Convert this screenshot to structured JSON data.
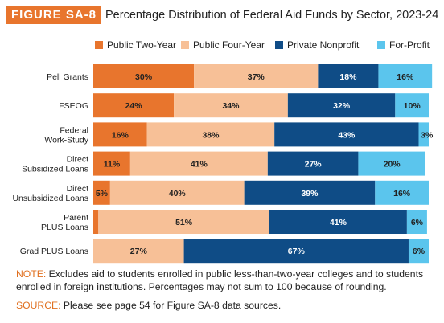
{
  "figure_label": "FIGURE SA-8",
  "figure_title": "Percentage Distribution of Federal Aid Funds by Sector, 2023-24",
  "note": {
    "label": "NOTE:",
    "text": " Excludes aid to students enrolled in public less-than-two-year colleges and to students enrolled in foreign institutions. Percentages may not sum to 100 because of rounding."
  },
  "source": {
    "label": "SOURCE:",
    "text": " Please see page 54 for Figure SA-8 data sources."
  },
  "chart_data": {
    "type": "bar",
    "stacked": true,
    "orientation": "horizontal",
    "legend_position": "top",
    "xlim": [
      0,
      100
    ],
    "categories": [
      "Pell Grants",
      "FSEOG",
      "Federal Work-Study",
      "Direct Subsidized Loans",
      "Direct Unsubsidized Loans",
      "Parent PLUS Loans",
      "Grad PLUS Loans"
    ],
    "category_lines": [
      [
        "Pell Grants"
      ],
      [
        "FSEOG"
      ],
      [
        "Federal",
        "Work-Study"
      ],
      [
        "Direct",
        "Subsidized Loans"
      ],
      [
        "Direct",
        "Unsubsidized Loans"
      ],
      [
        "Parent",
        "PLUS Loans"
      ],
      [
        "Grad PLUS Loans"
      ]
    ],
    "series": [
      {
        "name": "Public Two-Year",
        "color": "#e8752d",
        "values": [
          30,
          24,
          16,
          11,
          5,
          1.5,
          0
        ],
        "labels": [
          "30%",
          "24%",
          "16%",
          "11%",
          "5%",
          "",
          ""
        ]
      },
      {
        "name": "Public Four-Year",
        "color": "#f7c097",
        "values": [
          37,
          34,
          38,
          41,
          40,
          51,
          27
        ],
        "labels": [
          "37%",
          "34%",
          "38%",
          "41%",
          "40%",
          "51%",
          "27%"
        ]
      },
      {
        "name": "Private Nonprofit",
        "color": "#0f4c86",
        "values": [
          18,
          32,
          43,
          27,
          39,
          41,
          67
        ],
        "labels": [
          "18%",
          "32%",
          "43%",
          "27%",
          "39%",
          "41%",
          "67%"
        ]
      },
      {
        "name": "For-Profit",
        "color": "#5bc5ed",
        "values": [
          16,
          10,
          3,
          20,
          16,
          6,
          6
        ],
        "labels": [
          "16%",
          "10%",
          "3%",
          "20%",
          "16%",
          "6%",
          "6%"
        ]
      }
    ]
  }
}
